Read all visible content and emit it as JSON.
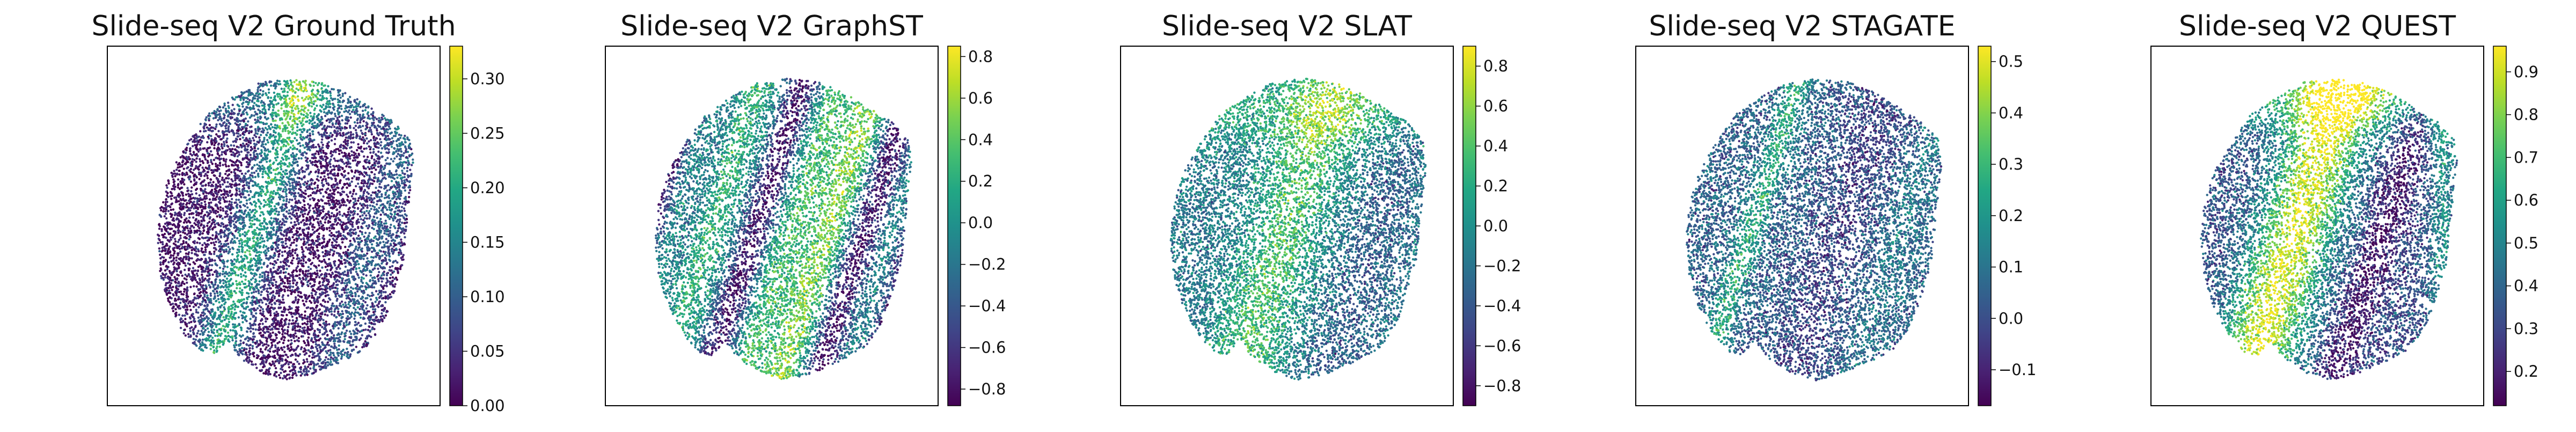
{
  "figure": {
    "panels": [
      {
        "title": "Slide-seq V2 Ground Truth",
        "colorbar_ticks": [
          "0.00",
          "0.05",
          "0.10",
          "0.15",
          "0.20",
          "0.25",
          "0.30"
        ],
        "value_range": [
          0.0,
          0.33
        ]
      },
      {
        "title": "Slide-seq V2 GraphST",
        "colorbar_ticks": [
          "−0.8",
          "−0.6",
          "−0.4",
          "−0.2",
          "0.0",
          "0.2",
          "0.4",
          "0.6",
          "0.8"
        ],
        "value_range": [
          -0.88,
          0.85
        ]
      },
      {
        "title": "Slide-seq V2 SLAT",
        "colorbar_ticks": [
          "−0.8",
          "−0.6",
          "−0.4",
          "−0.2",
          "0.0",
          "0.2",
          "0.4",
          "0.6",
          "0.8"
        ],
        "value_range": [
          -0.9,
          0.9
        ]
      },
      {
        "title": "Slide-seq V2 STAGATE",
        "colorbar_ticks": [
          "−0.1",
          "0.0",
          "0.1",
          "0.2",
          "0.3",
          "0.4",
          "0.5"
        ],
        "value_range": [
          -0.17,
          0.53
        ]
      },
      {
        "title": "Slide-seq V2 QUEST",
        "colorbar_ticks": [
          "0.2",
          "0.3",
          "0.4",
          "0.5",
          "0.6",
          "0.7",
          "0.8",
          "0.9"
        ],
        "value_range": [
          0.12,
          0.96
        ]
      }
    ]
  },
  "chart_data": [
    {
      "type": "scatter",
      "title": "Slide-seq V2 Ground Truth",
      "xlabel": "",
      "ylabel": "",
      "colormap": "viridis",
      "color_range": [
        0.0,
        0.33
      ],
      "colorbar_ticks": [
        0.0,
        0.05,
        0.1,
        0.15,
        0.2,
        0.25,
        0.3
      ],
      "axis_ticks": false,
      "grid": false,
      "legend": "colorbar-right"
    },
    {
      "type": "scatter",
      "title": "Slide-seq V2 GraphST",
      "xlabel": "",
      "ylabel": "",
      "colormap": "viridis",
      "color_range": [
        -0.88,
        0.85
      ],
      "colorbar_ticks": [
        -0.8,
        -0.6,
        -0.4,
        -0.2,
        0.0,
        0.2,
        0.4,
        0.6,
        0.8
      ],
      "axis_ticks": false,
      "grid": false,
      "legend": "colorbar-right"
    },
    {
      "type": "scatter",
      "title": "Slide-seq V2 SLAT",
      "xlabel": "",
      "ylabel": "",
      "colormap": "viridis",
      "color_range": [
        -0.9,
        0.9
      ],
      "colorbar_ticks": [
        -0.8,
        -0.6,
        -0.4,
        -0.2,
        0.0,
        0.2,
        0.4,
        0.6,
        0.8
      ],
      "axis_ticks": false,
      "grid": false,
      "legend": "colorbar-right"
    },
    {
      "type": "scatter",
      "title": "Slide-seq V2 STAGATE",
      "xlabel": "",
      "ylabel": "",
      "colormap": "viridis",
      "color_range": [
        -0.17,
        0.53
      ],
      "colorbar_ticks": [
        -0.1,
        0.0,
        0.1,
        0.2,
        0.3,
        0.4,
        0.5
      ],
      "axis_ticks": false,
      "grid": false,
      "legend": "colorbar-right"
    },
    {
      "type": "scatter",
      "title": "Slide-seq V2 QUEST",
      "xlabel": "",
      "ylabel": "",
      "colormap": "viridis",
      "color_range": [
        0.12,
        0.96
      ],
      "colorbar_ticks": [
        0.2,
        0.3,
        0.4,
        0.5,
        0.6,
        0.7,
        0.8,
        0.9
      ],
      "axis_ticks": false,
      "grid": false,
      "legend": "colorbar-right"
    }
  ]
}
